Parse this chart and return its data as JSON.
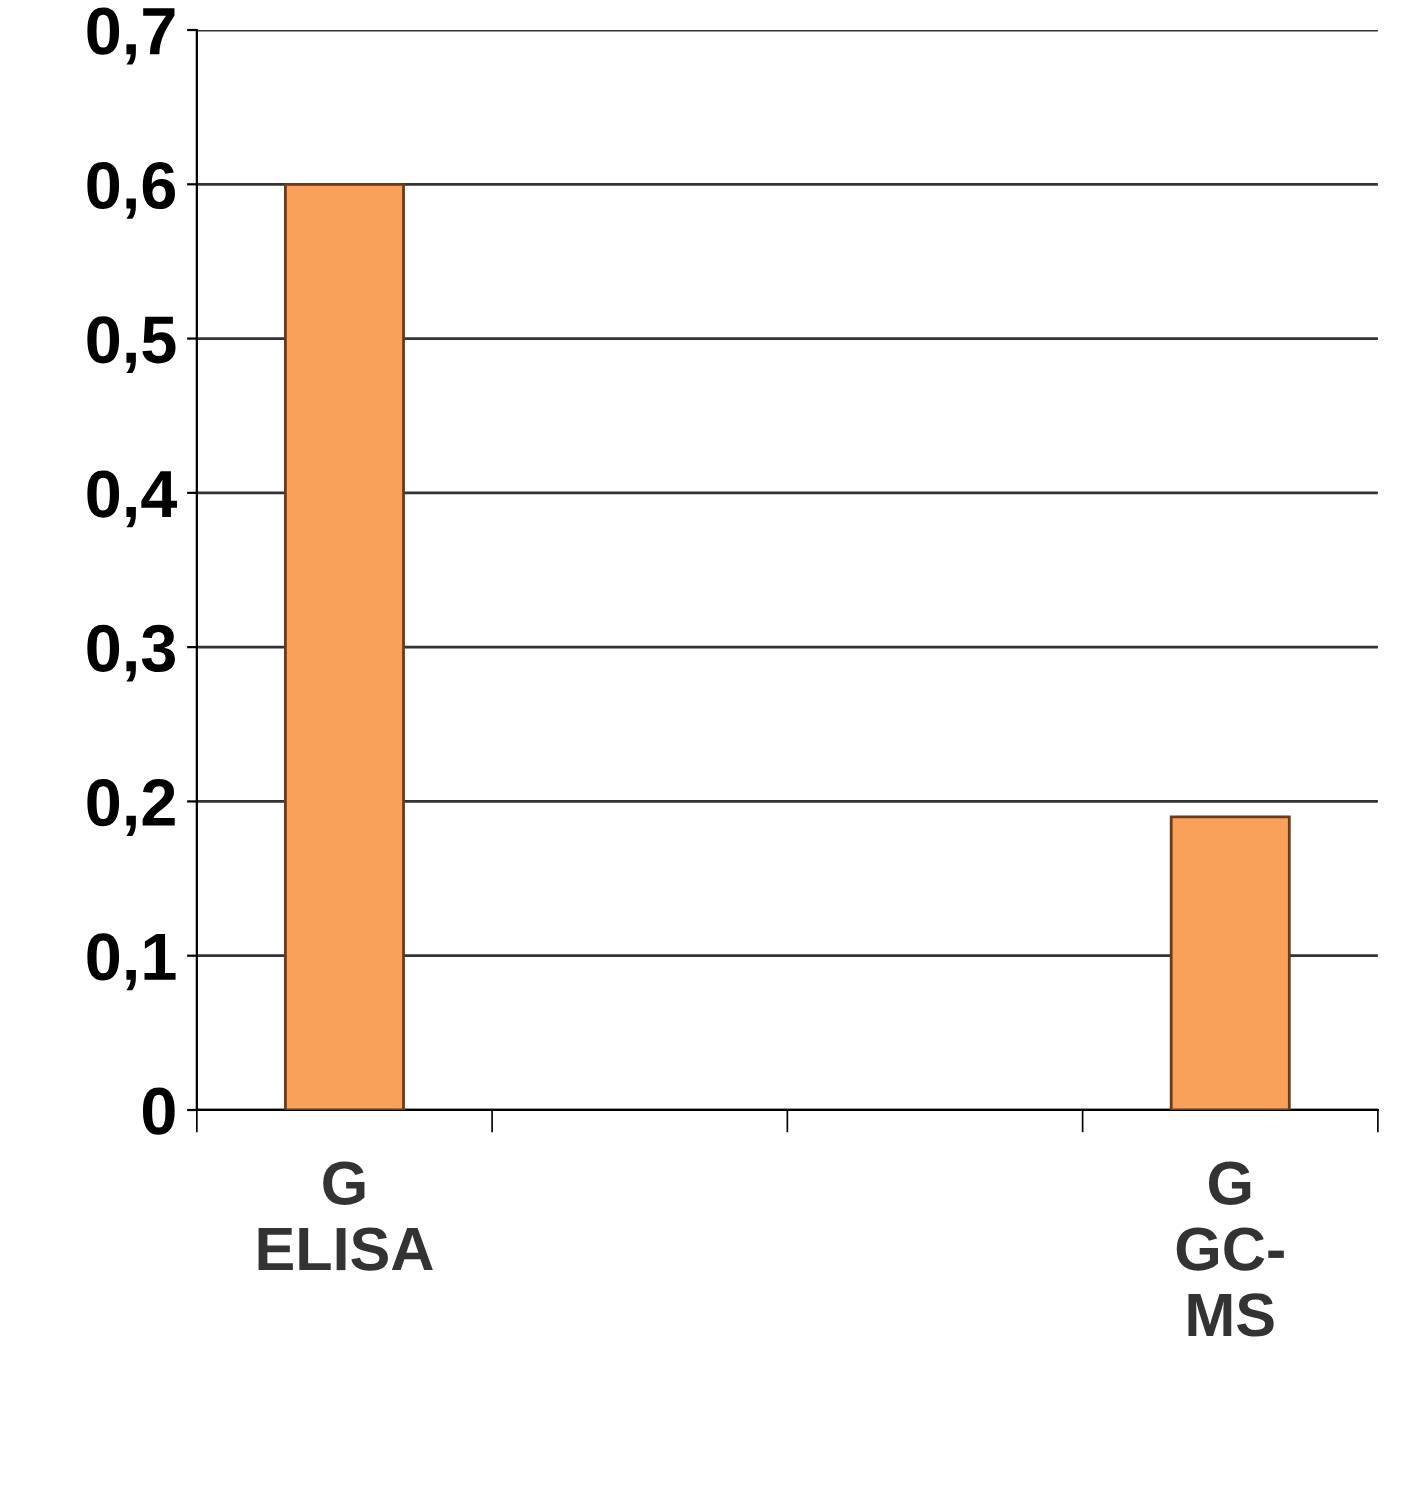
{
  "chart_data": {
    "type": "bar",
    "categories": [
      "G\nELISA",
      null,
      null,
      "G\nGC-\nMS"
    ],
    "values": [
      0.6,
      null,
      null,
      0.19
    ],
    "color": "#f9a05a",
    "ylim": [
      0,
      0.7
    ],
    "yticks": [
      0,
      {
        "value": 0.1,
        "label": "0,1"
      },
      {
        "value": 0.2,
        "label": "0,2"
      },
      {
        "value": 0.3,
        "label": "0,3"
      },
      {
        "value": 0.4,
        "label": "0,4"
      },
      {
        "value": 0.5,
        "label": "0,5"
      },
      {
        "value": 0.6,
        "label": "0,6"
      },
      {
        "value": 0.7,
        "label": "0,7"
      }
    ],
    "grid": "y"
  }
}
